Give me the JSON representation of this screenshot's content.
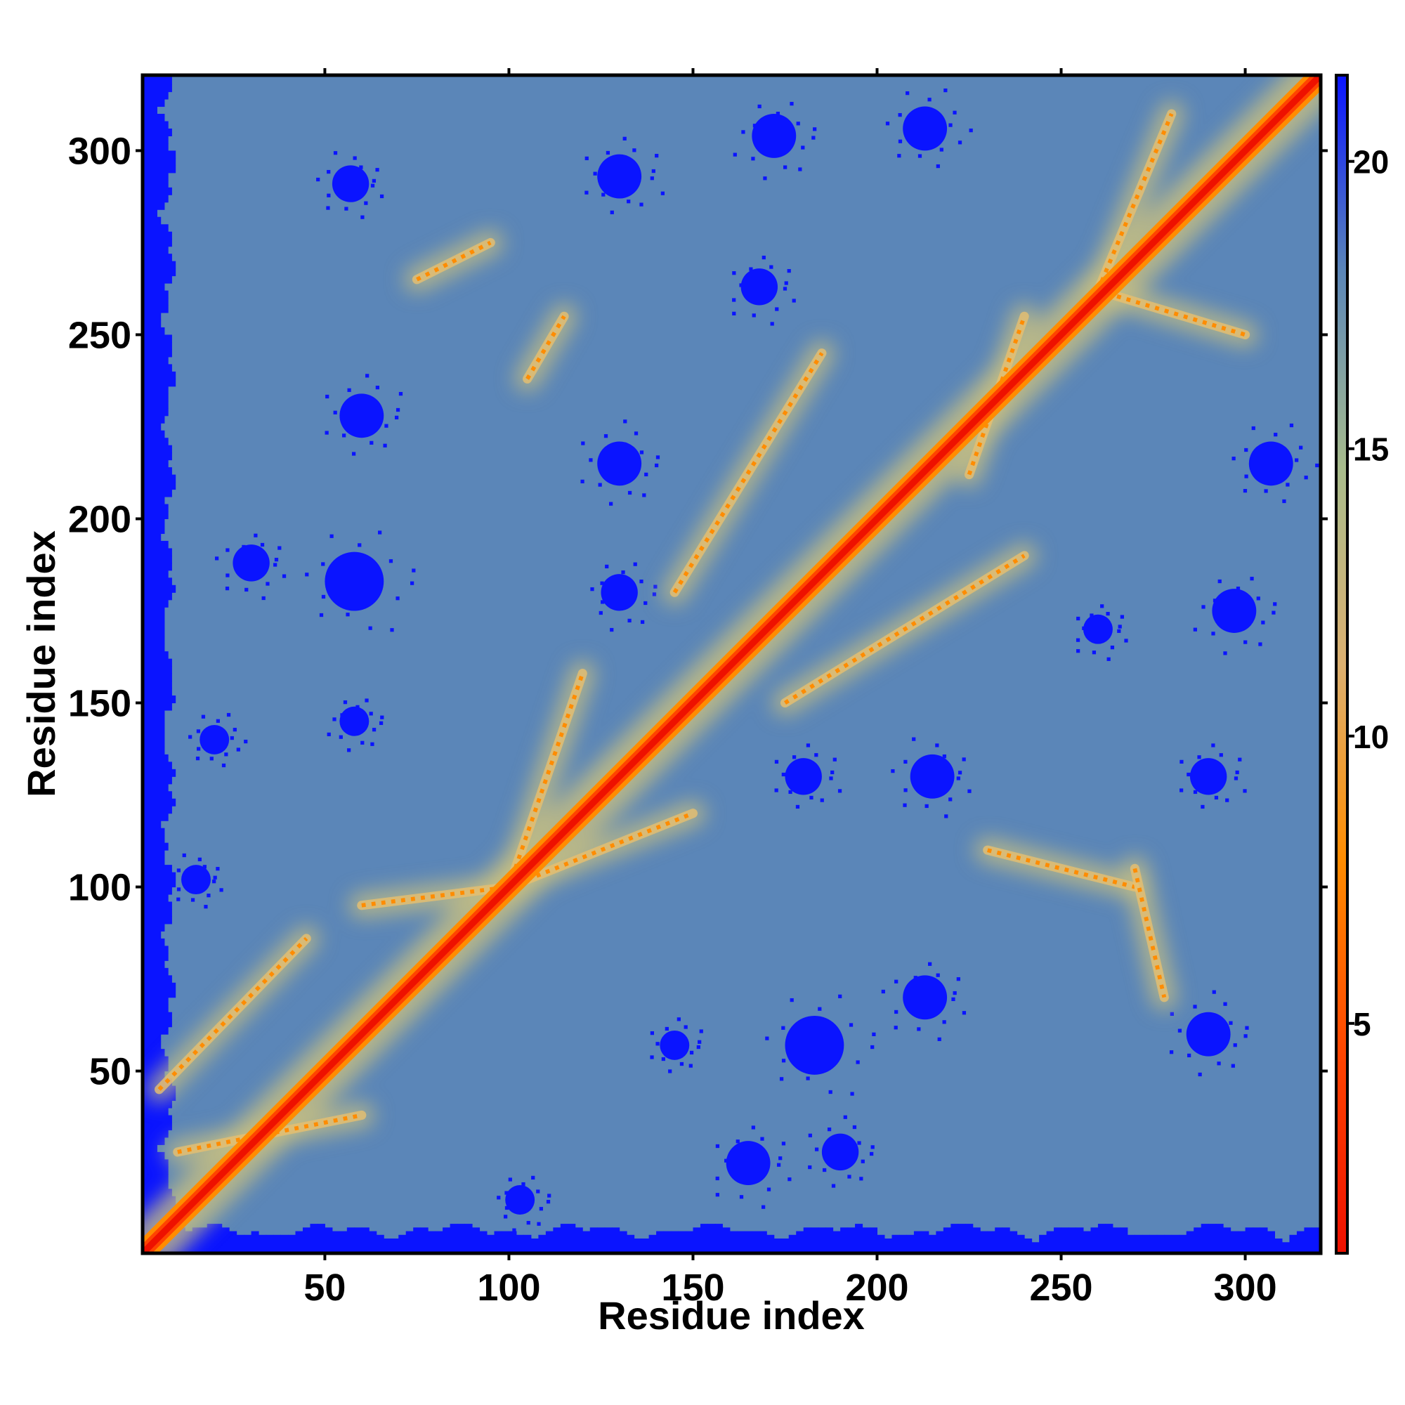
{
  "chart_data": {
    "type": "heatmap",
    "title": "",
    "xlabel": "Residue index",
    "ylabel": "Residue index",
    "xlim": [
      1,
      320
    ],
    "ylim": [
      1,
      320
    ],
    "x_ticks": [
      50,
      100,
      150,
      200,
      250,
      300
    ],
    "y_ticks": [
      50,
      100,
      150,
      200,
      250,
      300
    ],
    "x_tick_labels": [
      "50",
      "100",
      "150",
      "200",
      "250",
      "300"
    ],
    "y_tick_labels": [
      "50",
      "100",
      "150",
      "200",
      "250",
      "300"
    ],
    "colorbar": {
      "range": [
        1,
        21.5
      ],
      "ticks": [
        5,
        10,
        15,
        20
      ],
      "tick_labels": [
        "5",
        "10",
        "15",
        "20"
      ],
      "colors": [
        "#ee1100",
        "#ff4400",
        "#ff8c00",
        "#dcb070",
        "#a8bc8c",
        "#5b86b8",
        "#0a14ff"
      ]
    },
    "colors": {
      "background": "#5b86b8",
      "far_contact": "#0a14ff",
      "close_contact": "#ee1100"
    },
    "diagonal": {
      "distance_on_diagonal": 1,
      "band_width_residues": 6
    },
    "contact_ridges": [
      {
        "from": [
          10,
          28
        ],
        "to": [
          60,
          38
        ]
      },
      {
        "from": [
          5,
          45
        ],
        "to": [
          45,
          86
        ]
      },
      {
        "from": [
          60,
          95
        ],
        "to": [
          100,
          100
        ]
      },
      {
        "from": [
          100,
          100
        ],
        "to": [
          150,
          120
        ]
      },
      {
        "from": [
          100,
          100
        ],
        "to": [
          120,
          158
        ]
      },
      {
        "from": [
          145,
          180
        ],
        "to": [
          185,
          245
        ]
      },
      {
        "from": [
          175,
          150
        ],
        "to": [
          240,
          190
        ]
      },
      {
        "from": [
          225,
          212
        ],
        "to": [
          240,
          255
        ]
      },
      {
        "from": [
          260,
          262
        ],
        "to": [
          300,
          250
        ]
      },
      {
        "from": [
          260,
          262
        ],
        "to": [
          280,
          310
        ]
      },
      {
        "from": [
          230,
          110
        ],
        "to": [
          270,
          100
        ]
      },
      {
        "from": [
          270,
          105
        ],
        "to": [
          278,
          70
        ]
      },
      {
        "from": [
          105,
          238
        ],
        "to": [
          115,
          255
        ]
      },
      {
        "from": [
          75,
          265
        ],
        "to": [
          95,
          275
        ]
      }
    ],
    "far_regions": [
      {
        "x": 57,
        "y": 291,
        "r": 5
      },
      {
        "x": 130,
        "y": 293,
        "r": 6
      },
      {
        "x": 172,
        "y": 304,
        "r": 6
      },
      {
        "x": 213,
        "y": 306,
        "r": 6
      },
      {
        "x": 168,
        "y": 263,
        "r": 5
      },
      {
        "x": 130,
        "y": 215,
        "r": 6
      },
      {
        "x": 58,
        "y": 183,
        "r": 8
      },
      {
        "x": 30,
        "y": 188,
        "r": 5
      },
      {
        "x": 60,
        "y": 228,
        "r": 6
      },
      {
        "x": 130,
        "y": 180,
        "r": 5
      },
      {
        "x": 215,
        "y": 130,
        "r": 6
      },
      {
        "x": 290,
        "y": 130,
        "r": 5
      },
      {
        "x": 297,
        "y": 175,
        "r": 6
      },
      {
        "x": 307,
        "y": 215,
        "r": 6
      },
      {
        "x": 260,
        "y": 170,
        "r": 4
      },
      {
        "x": 290,
        "y": 60,
        "r": 6
      },
      {
        "x": 183,
        "y": 57,
        "r": 8
      },
      {
        "x": 213,
        "y": 70,
        "r": 6
      },
      {
        "x": 145,
        "y": 57,
        "r": 4
      },
      {
        "x": 103,
        "y": 15,
        "r": 4
      },
      {
        "x": 15,
        "y": 102,
        "r": 4
      },
      {
        "x": 180,
        "y": 130,
        "r": 5
      },
      {
        "x": 58,
        "y": 145,
        "r": 4
      },
      {
        "x": 20,
        "y": 140,
        "r": 4
      },
      {
        "x": 165,
        "y": 25,
        "r": 6
      },
      {
        "x": 190,
        "y": 28,
        "r": 5
      }
    ]
  }
}
